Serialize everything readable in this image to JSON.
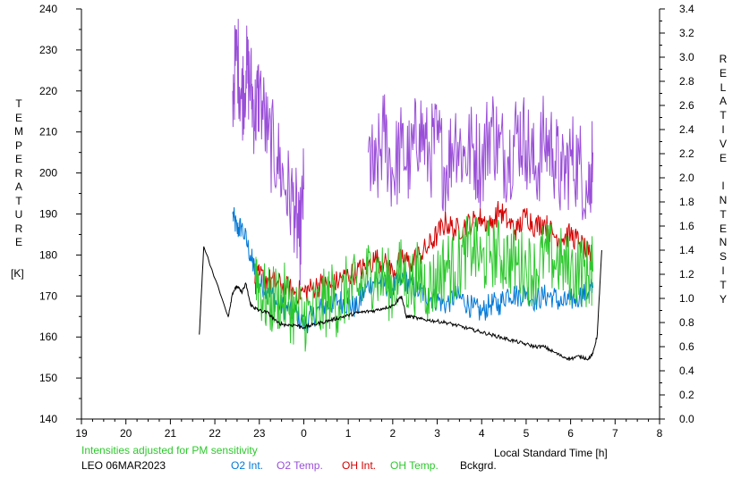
{
  "chart_data": {
    "type": "line",
    "left_axis_label": [
      "T",
      "E",
      "M",
      "P",
      "E",
      "R",
      "A",
      "T",
      "U",
      "R",
      "E"
    ],
    "left_unit": "[K]",
    "right_axis_label": [
      "R",
      "E",
      "L",
      "A",
      "T",
      "I",
      "V",
      "E",
      "",
      "I",
      "N",
      "T",
      "E",
      "N",
      "S",
      "I",
      "T",
      "Y"
    ],
    "xlabel": "Local Standard Time [h]",
    "x_ticks": [
      "19",
      "20",
      "21",
      "22",
      "23",
      "0",
      "1",
      "2",
      "3",
      "4",
      "5",
      "6",
      "7",
      "8"
    ],
    "left_ticks": [
      140,
      150,
      160,
      170,
      180,
      190,
      200,
      210,
      220,
      230,
      240
    ],
    "right_ticks": [
      "0.0",
      "0.2",
      "0.4",
      "0.6",
      "0.8",
      "1.0",
      "1.2",
      "1.4",
      "1.6",
      "1.8",
      "2.0",
      "2.2",
      "2.4",
      "2.6",
      "2.8",
      "3.0",
      "3.2",
      "3.4"
    ],
    "xlim": [
      19,
      32
    ],
    "ylim_left": [
      140,
      240
    ],
    "ylim_right": [
      0,
      3.4
    ],
    "note": "Intensities adjusted for PM sensitivity",
    "station": "LEO 06MAR2023",
    "series": [
      {
        "name": "O2 Int.",
        "color": "#0078d7",
        "axis": "left",
        "x": [
          22.4,
          22.5,
          22.6,
          22.8,
          22.9,
          23.0,
          23.2,
          23.4,
          23.6,
          23.8,
          24.0,
          24.2,
          24.4,
          24.6,
          24.8,
          25.0,
          25.2,
          25.4,
          25.6,
          25.8,
          26.0,
          26.2,
          26.4,
          26.6,
          26.8,
          27.0,
          27.2,
          27.4,
          27.6,
          27.8,
          28.0,
          28.2,
          28.4,
          28.6,
          28.8,
          29.0,
          29.2,
          29.4,
          29.6,
          29.8,
          30.0,
          30.2,
          30.4,
          30.5
        ],
        "y": [
          190,
          186,
          187,
          180,
          176,
          173,
          172,
          168,
          167,
          166,
          163,
          165,
          167,
          168,
          169,
          168,
          167,
          172,
          174,
          173,
          172,
          174,
          173,
          171,
          170,
          169,
          168,
          170,
          169,
          167,
          166,
          168,
          168,
          171,
          170,
          171,
          169,
          170,
          170,
          168,
          169,
          170,
          171,
          172
        ]
      },
      {
        "name": "O2 Temp.",
        "color": "#9a4fd8",
        "axis": "left",
        "x": [
          22.4,
          22.5,
          22.6,
          22.7,
          22.8,
          22.9,
          23.0,
          23.2,
          23.4,
          23.6,
          23.8,
          23.9,
          24.0,
          25.45,
          25.6,
          25.8,
          26.0,
          26.2,
          26.4,
          26.6,
          26.8,
          27.0,
          27.2,
          27.4,
          27.6,
          27.8,
          28.0,
          28.2,
          28.4,
          28.6,
          28.8,
          29.0,
          29.2,
          29.4,
          29.6,
          29.8,
          30.0,
          30.2,
          30.4,
          30.5
        ],
        "y": [
          220,
          230,
          218,
          225,
          222,
          214,
          220,
          208,
          204,
          196,
          192,
          182,
          196,
          205,
          198,
          210,
          200,
          206,
          202,
          212,
          204,
          208,
          200,
          210,
          204,
          206,
          202,
          212,
          206,
          204,
          210,
          208,
          200,
          208,
          206,
          198,
          204,
          202,
          196,
          205
        ]
      },
      {
        "name": "OH Int.",
        "color": "#d40000",
        "axis": "left",
        "x": [
          22.9,
          23.0,
          23.2,
          23.4,
          23.6,
          23.8,
          24.0,
          24.2,
          24.4,
          24.6,
          24.8,
          25.0,
          25.2,
          25.4,
          25.6,
          25.8,
          26.0,
          26.2,
          26.4,
          26.6,
          26.8,
          27.0,
          27.2,
          27.4,
          27.6,
          27.8,
          28.0,
          28.2,
          28.4,
          28.6,
          28.8,
          29.0,
          29.2,
          29.4,
          29.6,
          29.8,
          30.0,
          30.2,
          30.4,
          30.5
        ],
        "y": [
          173,
          175,
          174,
          173,
          172,
          171,
          171,
          172,
          173,
          172,
          174,
          175,
          176,
          177,
          179,
          178,
          176,
          179,
          178,
          180,
          182,
          185,
          188,
          186,
          187,
          188,
          189,
          187,
          191,
          188,
          186,
          190,
          187,
          188,
          185,
          184,
          185,
          183,
          180,
          178
        ]
      },
      {
        "name": "OH Temp.",
        "color": "#2ec82e",
        "axis": "left",
        "x": [
          22.9,
          23.0,
          23.2,
          23.4,
          23.6,
          23.8,
          24.0,
          24.2,
          24.4,
          24.6,
          24.8,
          25.0,
          25.2,
          25.4,
          25.6,
          25.8,
          26.0,
          26.2,
          26.4,
          26.6,
          26.8,
          27.0,
          27.2,
          27.4,
          27.6,
          27.8,
          28.0,
          28.2,
          28.4,
          28.6,
          28.8,
          29.0,
          29.2,
          29.4,
          29.6,
          29.8,
          30.0,
          30.2,
          30.4,
          30.5
        ],
        "y": [
          178,
          172,
          168,
          170,
          169,
          166,
          165,
          166,
          167,
          170,
          168,
          172,
          171,
          175,
          176,
          174,
          172,
          176,
          173,
          175,
          172,
          174,
          178,
          176,
          180,
          182,
          178,
          181,
          180,
          179,
          178,
          177,
          176,
          180,
          179,
          178,
          176,
          177,
          175,
          176
        ]
      },
      {
        "name": "Bckgrd.",
        "color": "#000000",
        "axis": "right",
        "x": [
          21.65,
          21.75,
          22.3,
          22.4,
          22.5,
          22.6,
          22.7,
          22.8,
          22.9,
          23.0,
          23.2,
          23.4,
          23.6,
          23.8,
          24.0,
          24.2,
          24.4,
          24.6,
          24.8,
          25.0,
          25.2,
          25.4,
          25.6,
          25.8,
          26.0,
          26.2,
          26.3,
          26.4,
          26.6,
          26.8,
          27.0,
          27.2,
          27.4,
          27.6,
          27.8,
          28.0,
          28.2,
          28.4,
          28.6,
          28.8,
          29.0,
          29.2,
          29.4,
          29.6,
          29.8,
          30.0,
          30.2,
          30.4,
          30.5,
          30.6,
          30.7
        ],
        "y": [
          0.7,
          1.43,
          0.85,
          1.05,
          1.1,
          1.05,
          1.12,
          0.95,
          0.92,
          0.9,
          0.88,
          0.8,
          0.78,
          0.78,
          0.76,
          0.78,
          0.8,
          0.82,
          0.84,
          0.86,
          0.88,
          0.89,
          0.9,
          0.92,
          0.94,
          1.02,
          0.85,
          0.85,
          0.83,
          0.82,
          0.81,
          0.8,
          0.78,
          0.76,
          0.74,
          0.72,
          0.7,
          0.68,
          0.66,
          0.64,
          0.62,
          0.6,
          0.6,
          0.56,
          0.52,
          0.5,
          0.52,
          0.5,
          0.54,
          0.7,
          1.4
        ]
      }
    ]
  }
}
